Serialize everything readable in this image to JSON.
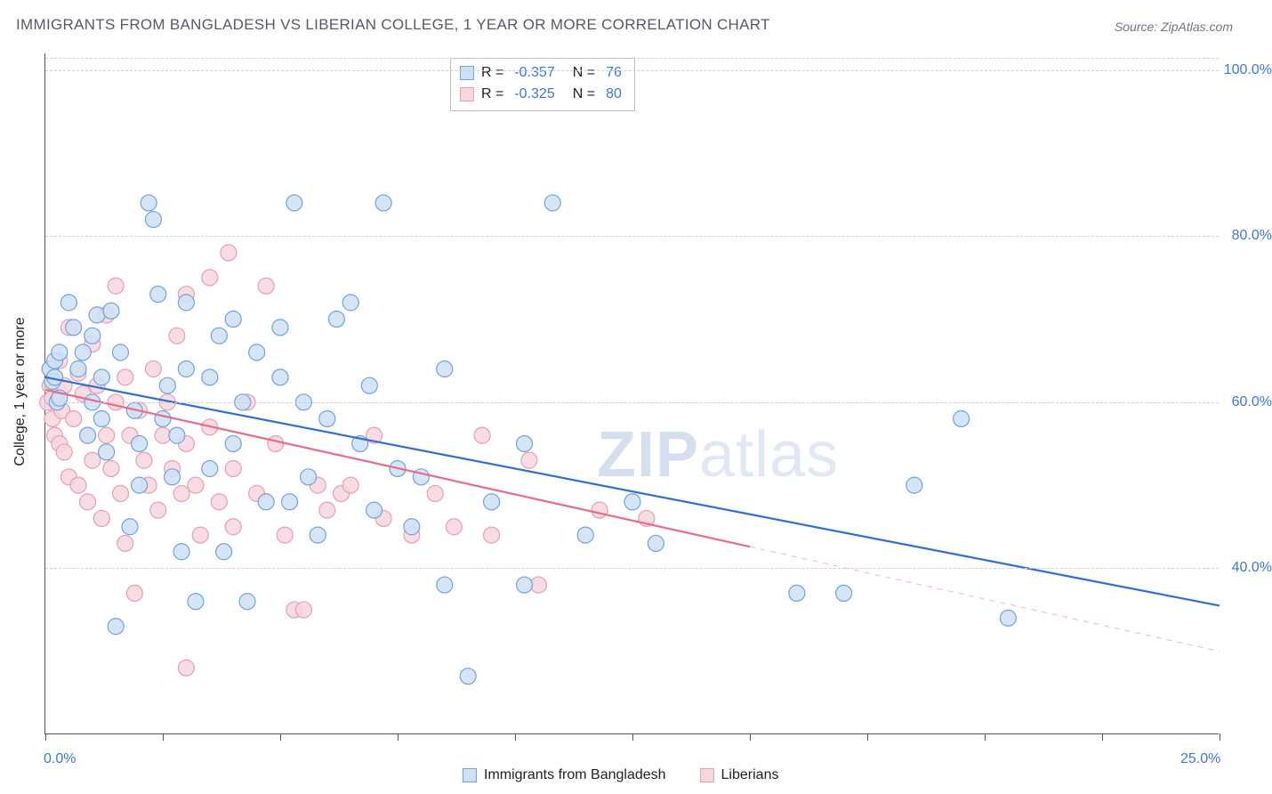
{
  "title": "IMMIGRANTS FROM BANGLADESH VS LIBERIAN COLLEGE, 1 YEAR OR MORE CORRELATION CHART",
  "source": "Source: ZipAtlas.com",
  "watermark": {
    "bold": "ZIP",
    "rest": "atlas"
  },
  "y_axis_title": "College, 1 year or more",
  "chart": {
    "type": "scatter",
    "x_range": [
      0,
      25
    ],
    "y_range": [
      20,
      102
    ],
    "x_ticks": [
      0,
      2.5,
      5,
      7.5,
      10,
      12.5,
      15,
      17.5,
      20,
      22.5,
      25
    ],
    "x_tick_labels": {
      "0": "0.0%",
      "25": "25.0%"
    },
    "y_grid": [
      40,
      60,
      80,
      100
    ],
    "y_grid_labels": {
      "40": "40.0%",
      "60": "60.0%",
      "80": "80.0%",
      "100": "100.0%"
    },
    "background_color": "#ffffff",
    "grid_color": "#cfcfcf",
    "marker_radius": 9,
    "marker_stroke_width": 1.2,
    "line_width": 2.2,
    "series": [
      {
        "name": "Immigrants from Bangladesh",
        "fill": "#cfe1f5",
        "stroke": "#6fa3dd",
        "line_color": "#2f6fd1",
        "r_value": "-0.357",
        "n_value": "76",
        "trend": {
          "x1": 0,
          "y1": 63.0,
          "x2": 25,
          "y2": 35.5,
          "solid_to_x": 25
        },
        "points": [
          [
            0.1,
            64
          ],
          [
            0.15,
            62.5
          ],
          [
            0.2,
            63
          ],
          [
            0.2,
            65
          ],
          [
            0.25,
            60
          ],
          [
            0.3,
            66
          ],
          [
            0.3,
            60.5
          ],
          [
            0.5,
            72
          ],
          [
            0.6,
            69
          ],
          [
            0.7,
            64
          ],
          [
            0.8,
            66
          ],
          [
            0.9,
            56
          ],
          [
            1.0,
            60
          ],
          [
            1.0,
            68
          ],
          [
            1.1,
            70.5
          ],
          [
            1.2,
            58
          ],
          [
            1.2,
            63
          ],
          [
            1.3,
            54
          ],
          [
            1.4,
            71
          ],
          [
            1.5,
            33
          ],
          [
            1.6,
            66
          ],
          [
            1.8,
            45
          ],
          [
            1.9,
            59
          ],
          [
            2.0,
            55
          ],
          [
            2.0,
            50
          ],
          [
            2.2,
            84
          ],
          [
            2.3,
            82
          ],
          [
            2.4,
            73
          ],
          [
            2.5,
            58
          ],
          [
            2.6,
            62
          ],
          [
            2.7,
            51
          ],
          [
            2.8,
            56
          ],
          [
            2.9,
            42
          ],
          [
            3.0,
            72
          ],
          [
            3.0,
            64
          ],
          [
            3.2,
            36
          ],
          [
            3.5,
            63
          ],
          [
            3.5,
            52
          ],
          [
            3.7,
            68
          ],
          [
            3.8,
            42
          ],
          [
            4.0,
            70
          ],
          [
            4.0,
            55
          ],
          [
            4.2,
            60
          ],
          [
            4.3,
            36
          ],
          [
            4.5,
            66
          ],
          [
            4.7,
            48
          ],
          [
            5.0,
            69
          ],
          [
            5.0,
            63
          ],
          [
            5.2,
            48
          ],
          [
            5.3,
            84
          ],
          [
            5.5,
            60
          ],
          [
            5.6,
            51
          ],
          [
            5.8,
            44
          ],
          [
            6.0,
            58
          ],
          [
            6.2,
            70
          ],
          [
            6.5,
            72
          ],
          [
            6.7,
            55
          ],
          [
            6.9,
            62
          ],
          [
            7.0,
            47
          ],
          [
            7.2,
            84
          ],
          [
            7.5,
            52
          ],
          [
            7.8,
            45
          ],
          [
            8.0,
            51
          ],
          [
            8.5,
            38
          ],
          [
            8.5,
            64
          ],
          [
            9.0,
            27
          ],
          [
            9.5,
            48
          ],
          [
            10.2,
            55
          ],
          [
            10.2,
            38
          ],
          [
            10.8,
            84
          ],
          [
            11.5,
            44
          ],
          [
            12.5,
            48
          ],
          [
            13.0,
            43
          ],
          [
            16.0,
            37
          ],
          [
            17.0,
            37
          ],
          [
            18.5,
            50
          ],
          [
            19.5,
            58
          ],
          [
            20.5,
            34
          ]
        ]
      },
      {
        "name": "Liberians",
        "fill": "#f7d6de",
        "stroke": "#e79fb1",
        "line_color": "#e86b87",
        "r_value": "-0.325",
        "n_value": "80",
        "trend": {
          "x1": 0,
          "y1": 61.5,
          "x2": 25,
          "y2": 30.0,
          "solid_to_x": 15
        },
        "points": [
          [
            0.05,
            60
          ],
          [
            0.1,
            62
          ],
          [
            0.1,
            64
          ],
          [
            0.15,
            60.5
          ],
          [
            0.15,
            58
          ],
          [
            0.2,
            63
          ],
          [
            0.2,
            56
          ],
          [
            0.25,
            62
          ],
          [
            0.3,
            65
          ],
          [
            0.3,
            55
          ],
          [
            0.35,
            59
          ],
          [
            0.4,
            62
          ],
          [
            0.4,
            54
          ],
          [
            0.5,
            69
          ],
          [
            0.5,
            51
          ],
          [
            0.6,
            58
          ],
          [
            0.7,
            63.5
          ],
          [
            0.7,
            50
          ],
          [
            0.8,
            61
          ],
          [
            0.9,
            56
          ],
          [
            0.9,
            48
          ],
          [
            1.0,
            67
          ],
          [
            1.0,
            53
          ],
          [
            1.1,
            62
          ],
          [
            1.2,
            46
          ],
          [
            1.3,
            56
          ],
          [
            1.3,
            70.5
          ],
          [
            1.4,
            52
          ],
          [
            1.5,
            60
          ],
          [
            1.5,
            74
          ],
          [
            1.6,
            49
          ],
          [
            1.7,
            63
          ],
          [
            1.7,
            43
          ],
          [
            1.8,
            56
          ],
          [
            1.9,
            37
          ],
          [
            2.0,
            59
          ],
          [
            2.1,
            53
          ],
          [
            2.2,
            50
          ],
          [
            2.3,
            64
          ],
          [
            2.4,
            47
          ],
          [
            2.5,
            56
          ],
          [
            2.6,
            60
          ],
          [
            2.7,
            52
          ],
          [
            2.8,
            68
          ],
          [
            2.9,
            49
          ],
          [
            3.0,
            55
          ],
          [
            3.0,
            73
          ],
          [
            3.2,
            50
          ],
          [
            3.3,
            44
          ],
          [
            3.5,
            75
          ],
          [
            3.5,
            57
          ],
          [
            3.7,
            48
          ],
          [
            3.9,
            78
          ],
          [
            4.0,
            52
          ],
          [
            4.0,
            45
          ],
          [
            4.3,
            60
          ],
          [
            4.5,
            49
          ],
          [
            4.7,
            74
          ],
          [
            4.9,
            55
          ],
          [
            5.1,
            44
          ],
          [
            5.3,
            35
          ],
          [
            5.5,
            35
          ],
          [
            5.8,
            50
          ],
          [
            6.0,
            47
          ],
          [
            6.3,
            49
          ],
          [
            6.5,
            50
          ],
          [
            7.0,
            56
          ],
          [
            7.2,
            46
          ],
          [
            7.8,
            44
          ],
          [
            8.3,
            49
          ],
          [
            8.7,
            45
          ],
          [
            9.3,
            56
          ],
          [
            9.5,
            44
          ],
          [
            10.3,
            53
          ],
          [
            10.5,
            38
          ],
          [
            11.8,
            47
          ],
          [
            12.8,
            46
          ],
          [
            3.0,
            28
          ]
        ]
      }
    ]
  },
  "legend_bottom": [
    {
      "label": "Immigrants from Bangladesh",
      "fill": "#cfe1f5",
      "stroke": "#6fa3dd"
    },
    {
      "label": "Liberians",
      "fill": "#f7d6de",
      "stroke": "#e79fb1"
    }
  ]
}
